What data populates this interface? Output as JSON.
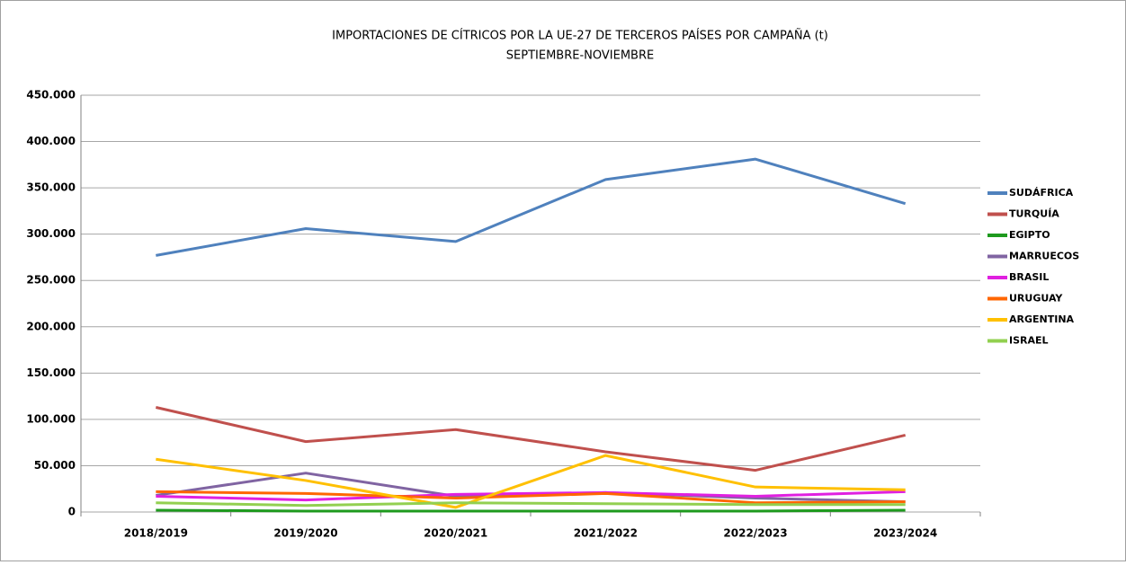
{
  "chart_data": {
    "type": "line",
    "title": "IMPORTACIONES DE CÍTRICOS POR LA UE-27 DE TERCEROS PAÍSES POR CAMPAÑA  (t)",
    "subtitle": "SEPTIEMBRE-NOVIEMBRE",
    "categories": [
      "2018/2019",
      "2019/2020",
      "2020/2021",
      "2021/2022",
      "2022/2023",
      "2023/2024"
    ],
    "series": [
      {
        "name": "SUDÁFRICA",
        "color": "#4f81bd",
        "values": [
          277000,
          306000,
          292000,
          359000,
          381000,
          333000
        ]
      },
      {
        "name": "TURQUÍA",
        "color": "#c0504d",
        "values": [
          113000,
          76000,
          89000,
          65000,
          45000,
          83000
        ]
      },
      {
        "name": "EGIPTO",
        "color": "#1e9a1e",
        "values": [
          2000,
          1000,
          1000,
          1000,
          1000,
          2000
        ]
      },
      {
        "name": "MARRUECOS",
        "color": "#8064a2",
        "values": [
          18000,
          42000,
          17000,
          21000,
          15000,
          11000
        ]
      },
      {
        "name": "BRASIL",
        "color": "#e020e0",
        "values": [
          17000,
          13000,
          19000,
          21000,
          17000,
          22000
        ]
      },
      {
        "name": "URUGUAY",
        "color": "#ff6600",
        "values": [
          22000,
          20000,
          15000,
          20000,
          10000,
          11000
        ]
      },
      {
        "name": "ARGENTINA",
        "color": "#ffc000",
        "values": [
          57000,
          34000,
          5000,
          61000,
          27000,
          24000
        ]
      },
      {
        "name": "ISRAEL",
        "color": "#92d050",
        "values": [
          10000,
          7000,
          10000,
          9000,
          8000,
          8000
        ]
      }
    ],
    "ylim": [
      0,
      450000
    ],
    "yticks": [
      0,
      {
        "value": 50000,
        "label": "50.000"
      },
      {
        "value": 100000,
        "label": "100.000"
      },
      {
        "value": 150000,
        "label": "150.000"
      },
      {
        "value": 200000,
        "label": "200.000"
      },
      {
        "value": 250000,
        "label": "250.000"
      },
      {
        "value": 300000,
        "label": "300.000"
      },
      {
        "value": 350000,
        "label": "350.000"
      },
      {
        "value": 400000,
        "label": "400.000"
      },
      {
        "value": 450000,
        "label": "450.000"
      }
    ],
    "grid": true,
    "legend": "right"
  }
}
